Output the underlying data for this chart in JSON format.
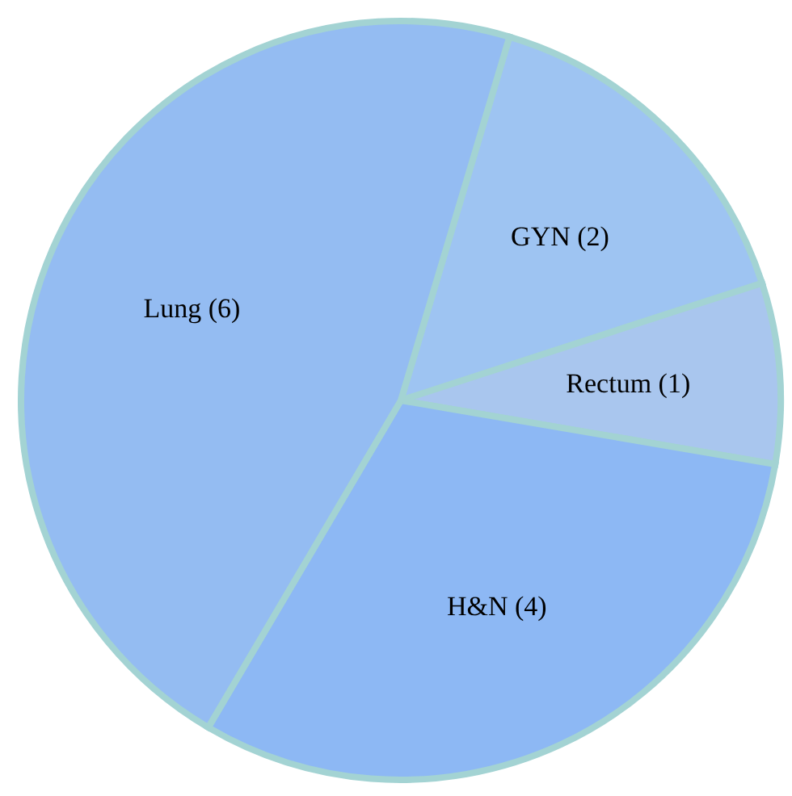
{
  "chart_data": {
    "type": "pie",
    "categories": [
      "GYN (2)",
      "Rectum (1)",
      "H&N (4)",
      "Lung (6)"
    ],
    "values": [
      2,
      1,
      4,
      6
    ],
    "colors": [
      "#9ec4f2",
      "#a9c6ee",
      "#8db8f4",
      "#94bcf2"
    ],
    "legend": false
  }
}
